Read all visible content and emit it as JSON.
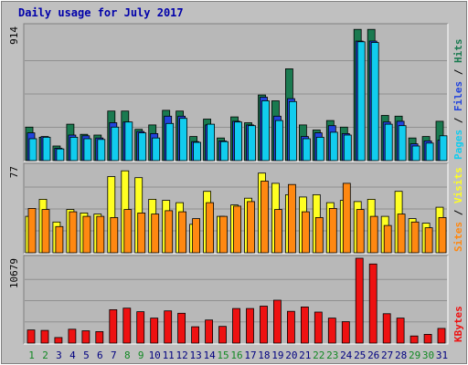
{
  "chart_data": {
    "type": "bar",
    "title": "Daily usage for July 2017",
    "categories": [
      "1",
      "2",
      "3",
      "4",
      "5",
      "6",
      "7",
      "8",
      "9",
      "10",
      "11",
      "12",
      "13",
      "14",
      "15",
      "16",
      "17",
      "18",
      "19",
      "20",
      "21",
      "22",
      "23",
      "24",
      "25",
      "26",
      "27",
      "28",
      "29",
      "30",
      "31"
    ],
    "weekend_days": [
      "1",
      "2",
      "8",
      "9",
      "15",
      "16",
      "22",
      "23",
      "29",
      "30"
    ],
    "panels": [
      {
        "id": "top",
        "max_label": "914",
        "ylim": [
          0,
          914
        ],
        "legend": [
          "Pages",
          "Files",
          "Hits"
        ],
        "series": [
          {
            "name": "Hits",
            "color": "#1a7a50",
            "values": [
              230,
              160,
              100,
              250,
              180,
              175,
              340,
              340,
              215,
              245,
              345,
              340,
              165,
              285,
              155,
              300,
              260,
              450,
              410,
              630,
              245,
              210,
              275,
              230,
              900,
              900,
              310,
              305,
              155,
              165,
              270
            ]
          },
          {
            "name": "Files",
            "color": "#2244dd",
            "values": [
              190,
              165,
              85,
              175,
              170,
              155,
              260,
              265,
              200,
              185,
              305,
              305,
              130,
              245,
              135,
              270,
              245,
              435,
              305,
              425,
              165,
              190,
              240,
              185,
              820,
              820,
              265,
              270,
              115,
              135,
              140
            ]
          },
          {
            "name": "Pages",
            "color": "#11ccee",
            "values": [
              150,
              160,
              80,
              160,
              150,
              145,
              230,
              265,
              190,
              155,
              255,
              290,
              125,
              250,
              130,
              265,
              240,
              410,
              275,
              405,
              150,
              160,
              195,
              175,
              815,
              810,
              250,
              240,
              100,
              120,
              170
            ]
          }
        ]
      },
      {
        "id": "middle",
        "max_label": "77",
        "ylim": [
          0,
          77
        ],
        "legend": [
          "Sites",
          "Visits"
        ],
        "series": [
          {
            "name": "Visits",
            "color": "#ffff22",
            "values": [
              32,
              47,
              27,
              38,
              35,
              34,
              67,
              72,
              66,
              47,
              46,
              44,
              25,
              54,
              32,
              42,
              48,
              70,
              61,
              51,
              49,
              51,
              44,
              46,
              45,
              47,
              32,
              54,
              30,
              26,
              40
            ]
          },
          {
            "name": "Sites",
            "color": "#ff8811",
            "values": [
              39,
              38,
              23,
              36,
              32,
              32,
              31,
              38,
              35,
              34,
              37,
              36,
              30,
              44,
              32,
              41,
              45,
              63,
              38,
              60,
              36,
              31,
              39,
              61,
              38,
              32,
              24,
              34,
              27,
              22,
              31
            ]
          }
        ]
      },
      {
        "id": "bottom",
        "max_label": "10679",
        "ylim": [
          0,
          10679
        ],
        "legend": [
          "KBytes"
        ],
        "series": [
          {
            "name": "KBytes",
            "color": "#ee1111",
            "values": [
              1650,
              1600,
              700,
              1750,
              1550,
              1450,
              4200,
              4400,
              3950,
              3150,
              4050,
              3750,
              2050,
              2900,
              2100,
              4350,
              4350,
              4650,
              5400,
              4000,
              4550,
              3900,
              3150,
              2700,
              10679,
              9950,
              3700,
              3150,
              900,
              1100,
              1850
            ]
          }
        ]
      }
    ]
  },
  "colors": {
    "background": "#c0c0c0",
    "plot_background": "#b8b8b8",
    "title": "#0000aa",
    "weekday": "#000080",
    "weekend": "#118822",
    "bar_outline": "#000000"
  }
}
